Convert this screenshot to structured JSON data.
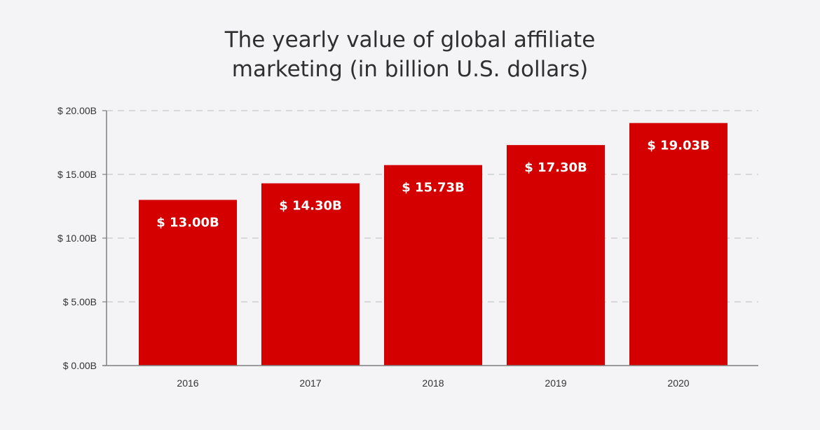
{
  "chart_data": {
    "type": "bar",
    "title_lines": [
      "The yearly value of global affiliate",
      "marketing (in billion U.S. dollars)"
    ],
    "categories": [
      "2016",
      "2017",
      "2018",
      "2019",
      "2020"
    ],
    "values": [
      13.0,
      14.3,
      15.73,
      17.3,
      19.03
    ],
    "data_labels": [
      "$ 13.00B",
      "$ 14.30B",
      "$ 15.73B",
      "$ 17.30B",
      "$ 19.03B"
    ],
    "y_ticks": [
      0,
      5,
      10,
      15,
      20
    ],
    "y_tick_labels": [
      "$ 0.00B",
      "$ 5.00B",
      "$ 10.00B",
      "$ 15.00B",
      "$ 20.00B"
    ],
    "ylim": [
      0,
      20
    ],
    "xlabel": "",
    "ylabel": "",
    "grid": true,
    "legend": "none",
    "colors": {
      "bar": "#d40000",
      "bar_label": "#ffffff",
      "axis": "#7f7f7f",
      "grid": "#cfcfcf",
      "tick_text": "#333333",
      "title": "#2f2f2f",
      "background": "#f4f4f6"
    }
  }
}
